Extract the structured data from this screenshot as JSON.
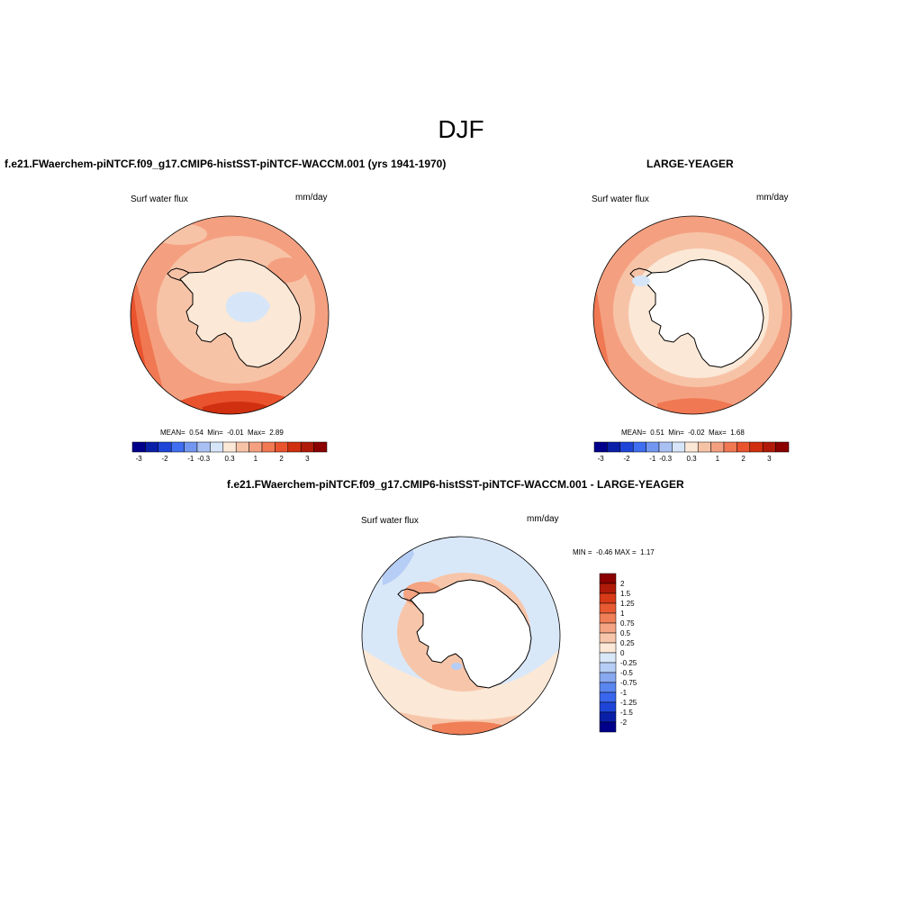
{
  "title": "DJF",
  "panels": [
    {
      "id": "p1",
      "case_title": "f.e21.FWaerchem-piNTCF.f09_g17.CMIP6-histSST-piNTCF-WACCM.001 (yrs 1941-1970)",
      "variable": "Surf water flux",
      "units": "mm/day",
      "stats": {
        "mean_label": "MEAN=",
        "mean": "0.54",
        "min_label": "Min=",
        "min": "-0.01",
        "max_label": "Max=",
        "max": "2.89"
      },
      "colorbar_labels": [
        "-3",
        "-2",
        "-1",
        "-0.3",
        "0.3",
        "1",
        "2",
        "3"
      ]
    },
    {
      "id": "p2",
      "case_title": "LARGE-YEAGER",
      "variable": "Surf water flux",
      "units": "mm/day",
      "stats": {
        "mean_label": "MEAN=",
        "mean": "0.51",
        "min_label": "Min=",
        "min": "-0.02",
        "max_label": "Max=",
        "max": "1.68"
      },
      "colorbar_labels": [
        "-3",
        "-2",
        "-1",
        "-0.3",
        "0.3",
        "1",
        "2",
        "3"
      ]
    },
    {
      "id": "p3",
      "case_title": "f.e21.FWaerchem-piNTCF.f09_g17.CMIP6-histSST-piNTCF-WACCM.001 - LARGE-YEAGER",
      "variable": "Surf water flux",
      "units": "mm/day",
      "stats": {
        "min_label": "MIN =",
        "min": "-0.46",
        "max_label": "MAX =",
        "max": "1.17"
      },
      "colorbar_labels": [
        "2",
        "1.5",
        "1.25",
        "1",
        "0.75",
        "0.5",
        "0.25",
        "0",
        "-0.25",
        "-0.5",
        "-0.75",
        "-1",
        "-1.25",
        "-1.5",
        "-2"
      ]
    }
  ],
  "colors": {
    "main_scale": [
      "#00008b",
      "#0a1fa8",
      "#1f45d8",
      "#3f6ef0",
      "#7397f0",
      "#a8c0f2",
      "#d6e6f8",
      "#fbe8d6",
      "#f7c3a7",
      "#f4a080",
      "#f07853",
      "#e9532e",
      "#d03010",
      "#b01a08",
      "#8b0000"
    ],
    "diff_scale": [
      "#00008b",
      "#0a1fa8",
      "#1f45d8",
      "#3a66ee",
      "#5a86f0",
      "#88a8f0",
      "#b6cdf5",
      "#d9e8f9",
      "#fbe8d6",
      "#f7c6aa",
      "#f4a482",
      "#f07f57",
      "#e95a32",
      "#d83a18",
      "#b01a08",
      "#8b0000"
    ],
    "land": "#ffffff",
    "ice_low": "#fbe8d6",
    "blue_patch": "#d6e6f8"
  }
}
